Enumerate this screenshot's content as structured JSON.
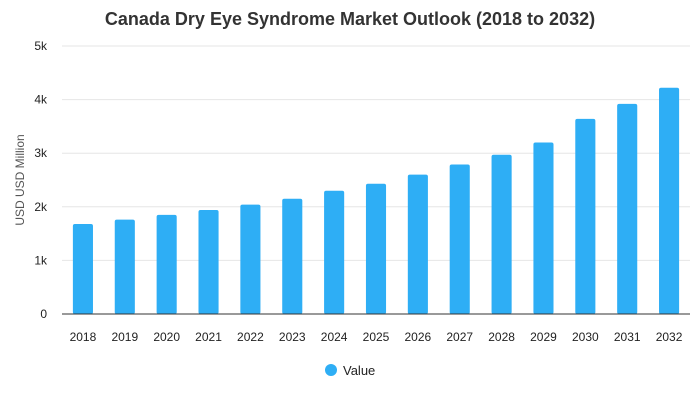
{
  "chart_data": {
    "type": "bar",
    "title": "Canada Dry Eye Syndrome Market Outlook (2018 to 2032)",
    "xlabel": "",
    "ylabel": "USD USD Million",
    "ylim": [
      0,
      5000
    ],
    "yticks": [
      0,
      1000,
      2000,
      3000,
      4000,
      5000
    ],
    "ytick_labels": [
      "0",
      "1k",
      "2k",
      "3k",
      "4k",
      "5k"
    ],
    "categories": [
      "2018",
      "2019",
      "2020",
      "2021",
      "2022",
      "2023",
      "2024",
      "2025",
      "2026",
      "2027",
      "2028",
      "2029",
      "2030",
      "2031",
      "2032"
    ],
    "series": [
      {
        "name": "Value",
        "color": "#2eaef5",
        "values": [
          1680,
          1760,
          1850,
          1940,
          2040,
          2150,
          2300,
          2430,
          2600,
          2790,
          2970,
          3200,
          3640,
          3920,
          4220
        ]
      }
    ],
    "grid": true,
    "legend_position": "bottom-center"
  }
}
